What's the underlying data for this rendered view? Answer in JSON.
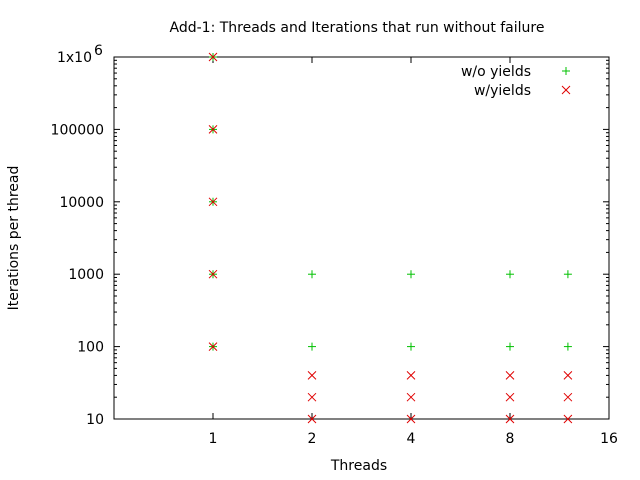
{
  "chart_data": {
    "type": "scatter",
    "title": "Add-1: Threads and Iterations that run without failure",
    "xlabel": "Threads",
    "ylabel": "Iterations per thread",
    "xscale": "log2",
    "yscale": "log10",
    "xlim": [
      0.5,
      16
    ],
    "ylim": [
      10,
      1000000
    ],
    "x_ticks": [
      {
        "value": 1,
        "label": "1"
      },
      {
        "value": 2,
        "label": "2"
      },
      {
        "value": 4,
        "label": "4"
      },
      {
        "value": 8,
        "label": "8"
      },
      {
        "value": 16,
        "label": "16"
      }
    ],
    "y_ticks": [
      {
        "value": 10,
        "label": "10"
      },
      {
        "value": 100,
        "label": "100"
      },
      {
        "value": 1000,
        "label": "1000"
      },
      {
        "value": 10000,
        "label": "10000"
      },
      {
        "value": 100000,
        "label": "100000"
      },
      {
        "value": 1000000,
        "label": "1x10",
        "sup": "6"
      }
    ],
    "legend_position": "top-right",
    "series": [
      {
        "name": "w/o yields",
        "marker": "plus",
        "color": "#00c000",
        "points": [
          {
            "x": 1,
            "y": 100
          },
          {
            "x": 1,
            "y": 1000
          },
          {
            "x": 1,
            "y": 10000
          },
          {
            "x": 1,
            "y": 100000
          },
          {
            "x": 1,
            "y": 1000000
          },
          {
            "x": 2,
            "y": 100
          },
          {
            "x": 2,
            "y": 1000
          },
          {
            "x": 4,
            "y": 100
          },
          {
            "x": 4,
            "y": 1000
          },
          {
            "x": 8,
            "y": 100
          },
          {
            "x": 8,
            "y": 1000
          },
          {
            "x": 12,
            "y": 100
          },
          {
            "x": 12,
            "y": 1000
          }
        ]
      },
      {
        "name": "w/yields",
        "marker": "cross",
        "color": "#e00000",
        "points": [
          {
            "x": 1,
            "y": 100
          },
          {
            "x": 1,
            "y": 1000
          },
          {
            "x": 1,
            "y": 10000
          },
          {
            "x": 1,
            "y": 100000
          },
          {
            "x": 1,
            "y": 1000000
          },
          {
            "x": 2,
            "y": 10
          },
          {
            "x": 2,
            "y": 20
          },
          {
            "x": 2,
            "y": 40
          },
          {
            "x": 4,
            "y": 10
          },
          {
            "x": 4,
            "y": 20
          },
          {
            "x": 4,
            "y": 40
          },
          {
            "x": 8,
            "y": 10
          },
          {
            "x": 8,
            "y": 20
          },
          {
            "x": 8,
            "y": 40
          },
          {
            "x": 12,
            "y": 10
          },
          {
            "x": 12,
            "y": 20
          },
          {
            "x": 12,
            "y": 40
          }
        ]
      }
    ]
  }
}
